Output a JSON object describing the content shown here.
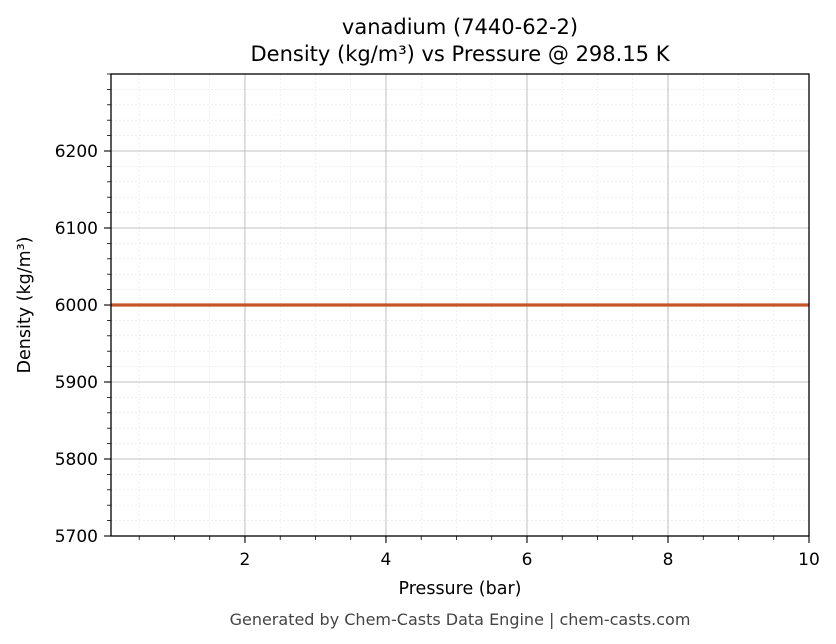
{
  "chart_data": {
    "type": "line",
    "title": "vanadium (7440-62-2)",
    "subtitle": "Density (kg/m³) vs Pressure @ 298.15 K",
    "xlabel": "Pressure (bar)",
    "ylabel": "Density (kg/m³)",
    "xlim": [
      0.1,
      10
    ],
    "ylim": [
      5700,
      6300
    ],
    "xticks": [
      2,
      4,
      6,
      8,
      10
    ],
    "yticks": [
      5700,
      5800,
      5900,
      6000,
      6100,
      6200
    ],
    "grid": true,
    "series": [
      {
        "x": [
          0.1,
          10
        ],
        "y": [
          6000,
          6000
        ],
        "color": "#c4562a"
      }
    ]
  },
  "footer": "Generated by Chem-Casts Data Engine | chem-casts.com"
}
